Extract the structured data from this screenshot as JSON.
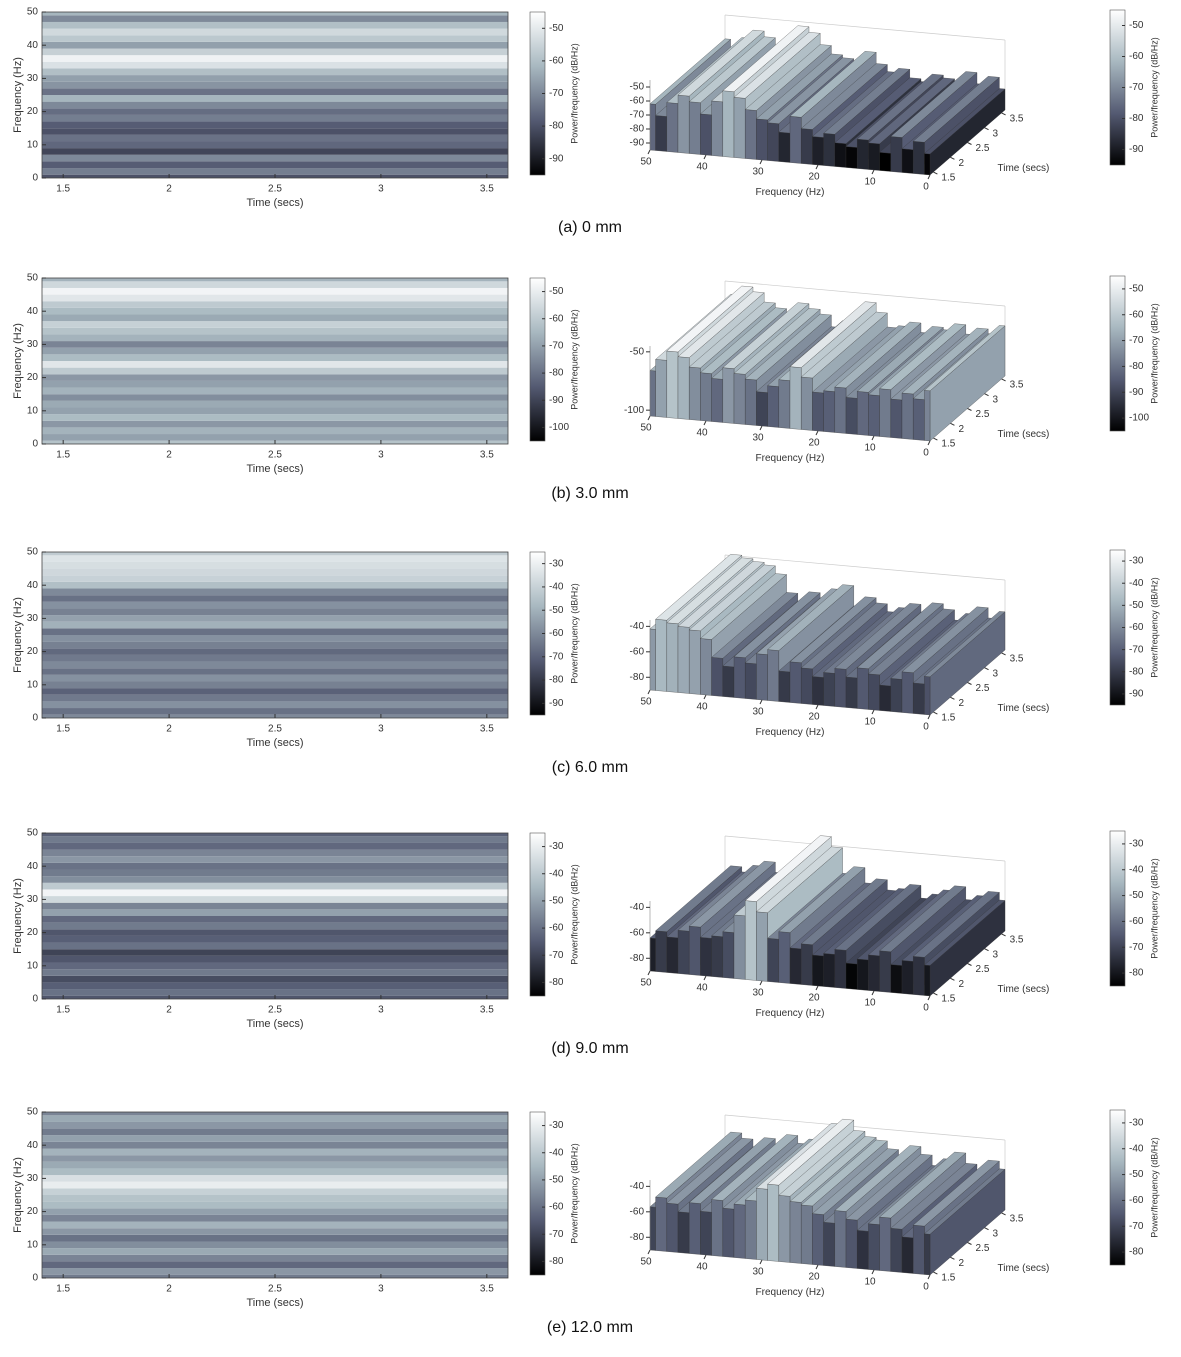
{
  "captions": [
    "(a) 0 mm",
    "(b) 3.0 mm",
    "(c) 6.0 mm",
    "(d) 9.0 mm",
    "(e) 12.0 mm"
  ],
  "chart_data": [
    {
      "type": "heatmap",
      "xlabel": "Time (secs)",
      "ylabel": "Frequency (Hz)",
      "colorbar_label": "Power/frequency (dB/Hz)",
      "xlim": [
        1.4,
        3.6
      ],
      "xticks": [
        1.5,
        2,
        2.5,
        3,
        3.5
      ],
      "ylim": [
        0,
        50
      ],
      "yticks": [
        0,
        10,
        20,
        30,
        40,
        50
      ],
      "clim": [
        -95,
        -45
      ],
      "cticks": [
        -90,
        -80,
        -70,
        -60,
        -50
      ],
      "colormap": [
        "#000000",
        "#545a72",
        "#a8b8c0",
        "#ffffff"
      ],
      "y": [
        0,
        2,
        4,
        6,
        8,
        10,
        12,
        14,
        16,
        18,
        20,
        22,
        24,
        26,
        28,
        30,
        32,
        34,
        36,
        38,
        40,
        42,
        44,
        46,
        48,
        50
      ],
      "values": [
        -80,
        -72,
        -78,
        -70,
        -82,
        -76,
        -74,
        -80,
        -78,
        -72,
        -75,
        -70,
        -62,
        -74,
        -68,
        -66,
        -60,
        -52,
        -48,
        -56,
        -66,
        -58,
        -54,
        -60,
        -70,
        -62
      ]
    },
    {
      "type": "surface",
      "xlabel": "Frequency (Hz)",
      "ylabel": "Time (secs)",
      "colorbar_label": "Power/frequency (dB/Hz)",
      "xlim": [
        0,
        50
      ],
      "xticks": [
        0,
        10,
        20,
        30,
        40,
        50
      ],
      "ylim": [
        1.4,
        3.6
      ],
      "yticks": [
        1.5,
        2,
        2.5,
        3,
        3.5
      ],
      "zlim": [
        -95,
        -45
      ],
      "zticks": [
        -90,
        -80,
        -70,
        -60,
        -50
      ],
      "clim": [
        -95,
        -45
      ],
      "cticks": [
        -90,
        -80,
        -70,
        -60,
        -50
      ],
      "colormap": [
        "#000000",
        "#545a72",
        "#a8b8c0",
        "#ffffff"
      ],
      "x": [
        0,
        2,
        4,
        6,
        8,
        10,
        12,
        14,
        16,
        18,
        20,
        22,
        24,
        26,
        28,
        30,
        32,
        34,
        36,
        38,
        40,
        42,
        44,
        46,
        48,
        50
      ],
      "values": [
        -80,
        -72,
        -78,
        -70,
        -82,
        -76,
        -74,
        -80,
        -78,
        -72,
        -75,
        -70,
        -62,
        -74,
        -68,
        -66,
        -60,
        -52,
        -48,
        -56,
        -66,
        -58,
        -54,
        -60,
        -70,
        -62
      ]
    },
    {
      "type": "heatmap",
      "xlabel": "Time (secs)",
      "ylabel": "Frequency (Hz)",
      "colorbar_label": "Power/frequency (dB/Hz)",
      "xlim": [
        1.4,
        3.6
      ],
      "xticks": [
        1.5,
        2,
        2.5,
        3,
        3.5
      ],
      "ylim": [
        0,
        50
      ],
      "yticks": [
        0,
        10,
        20,
        30,
        40,
        50
      ],
      "clim": [
        -105,
        -45
      ],
      "cticks": [
        -100,
        -90,
        -80,
        -70,
        -60,
        -50
      ],
      "colormap": [
        "#000000",
        "#545a72",
        "#a8b8c0",
        "#ffffff"
      ],
      "y": [
        0,
        2,
        4,
        6,
        8,
        10,
        12,
        14,
        16,
        18,
        20,
        22,
        24,
        26,
        28,
        30,
        32,
        34,
        36,
        38,
        40,
        42,
        44,
        46,
        48,
        50
      ],
      "values": [
        -62,
        -70,
        -66,
        -72,
        -64,
        -70,
        -68,
        -74,
        -66,
        -70,
        -72,
        -60,
        -52,
        -64,
        -70,
        -76,
        -66,
        -62,
        -58,
        -68,
        -64,
        -60,
        -52,
        -48,
        -56,
        -66
      ]
    },
    {
      "type": "surface",
      "xlabel": "Frequency (Hz)",
      "ylabel": "Time (secs)",
      "colorbar_label": "Power/frequency (dB/Hz)",
      "xlim": [
        0,
        50
      ],
      "xticks": [
        0,
        10,
        20,
        30,
        40,
        50
      ],
      "ylim": [
        1.4,
        3.6
      ],
      "yticks": [
        1.5,
        2,
        2.5,
        3,
        3.5
      ],
      "zlim": [
        -105,
        -45
      ],
      "zticks": [
        -100,
        -50
      ],
      "clim": [
        -105,
        -45
      ],
      "cticks": [
        -100,
        -90,
        -80,
        -70,
        -60,
        -50
      ],
      "colormap": [
        "#000000",
        "#545a72",
        "#a8b8c0",
        "#ffffff"
      ],
      "x": [
        0,
        2,
        4,
        6,
        8,
        10,
        12,
        14,
        16,
        18,
        20,
        22,
        24,
        26,
        28,
        30,
        32,
        34,
        36,
        38,
        40,
        42,
        44,
        46,
        48,
        50
      ],
      "values": [
        -62,
        -70,
        -66,
        -72,
        -64,
        -70,
        -68,
        -74,
        -66,
        -70,
        -72,
        -60,
        -52,
        -64,
        -70,
        -76,
        -66,
        -62,
        -58,
        -68,
        -64,
        -60,
        -52,
        -48,
        -56,
        -66
      ]
    },
    {
      "type": "heatmap",
      "xlabel": "Time (secs)",
      "ylabel": "Frequency (Hz)",
      "colorbar_label": "Power/frequency (dB/Hz)",
      "xlim": [
        1.4,
        3.6
      ],
      "xticks": [
        1.5,
        2,
        2.5,
        3,
        3.5
      ],
      "ylim": [
        0,
        50
      ],
      "yticks": [
        0,
        10,
        20,
        30,
        40,
        50
      ],
      "clim": [
        -95,
        -25
      ],
      "cticks": [
        -90,
        -80,
        -70,
        -60,
        -50,
        -40,
        -30
      ],
      "colormap": [
        "#000000",
        "#545a72",
        "#a8b8c0",
        "#ffffff"
      ],
      "y": [
        0,
        2,
        4,
        6,
        8,
        10,
        12,
        14,
        16,
        18,
        20,
        22,
        24,
        26,
        28,
        30,
        32,
        34,
        36,
        38,
        40,
        42,
        44,
        46,
        48,
        50
      ],
      "values": [
        -60,
        -66,
        -58,
        -64,
        -70,
        -62,
        -58,
        -66,
        -60,
        -64,
        -68,
        -62,
        -58,
        -66,
        -50,
        -54,
        -62,
        -58,
        -66,
        -60,
        -46,
        -40,
        -38,
        -36,
        -34,
        -42
      ]
    },
    {
      "type": "surface",
      "xlabel": "Frequency (Hz)",
      "ylabel": "Time (secs)",
      "colorbar_label": "Power/frequency (dB/Hz)",
      "xlim": [
        0,
        50
      ],
      "xticks": [
        0,
        10,
        20,
        30,
        40,
        50
      ],
      "ylim": [
        1.4,
        3.6
      ],
      "yticks": [
        1.5,
        2,
        2.5,
        3,
        3.5
      ],
      "zlim": [
        -90,
        -35
      ],
      "zticks": [
        -80,
        -60,
        -40
      ],
      "clim": [
        -95,
        -25
      ],
      "cticks": [
        -90,
        -80,
        -70,
        -60,
        -50,
        -40,
        -30
      ],
      "colormap": [
        "#000000",
        "#545a72",
        "#a8b8c0",
        "#ffffff"
      ],
      "x": [
        0,
        2,
        4,
        6,
        8,
        10,
        12,
        14,
        16,
        18,
        20,
        22,
        24,
        26,
        28,
        30,
        32,
        34,
        36,
        38,
        40,
        42,
        44,
        46,
        48,
        50
      ],
      "values": [
        -60,
        -66,
        -58,
        -64,
        -70,
        -62,
        -58,
        -66,
        -60,
        -64,
        -68,
        -62,
        -58,
        -66,
        -50,
        -54,
        -62,
        -58,
        -66,
        -60,
        -46,
        -40,
        -38,
        -36,
        -34,
        -42
      ]
    },
    {
      "type": "heatmap",
      "xlabel": "Time (secs)",
      "ylabel": "Frequency (Hz)",
      "colorbar_label": "Power/frequency (dB/Hz)",
      "xlim": [
        1.4,
        3.6
      ],
      "xticks": [
        1.5,
        2,
        2.5,
        3,
        3.5
      ],
      "ylim": [
        0,
        50
      ],
      "yticks": [
        0,
        10,
        20,
        30,
        40,
        50
      ],
      "clim": [
        -85,
        -25
      ],
      "cticks": [
        -80,
        -70,
        -60,
        -50,
        -40,
        -30
      ],
      "colormap": [
        "#000000",
        "#545a72",
        "#a8b8c0",
        "#ffffff"
      ],
      "y": [
        0,
        2,
        4,
        6,
        8,
        10,
        12,
        14,
        16,
        18,
        20,
        22,
        24,
        26,
        28,
        30,
        32,
        34,
        36,
        38,
        40,
        42,
        44,
        46,
        48,
        50
      ],
      "values": [
        -66,
        -60,
        -64,
        -68,
        -58,
        -62,
        -66,
        -70,
        -60,
        -64,
        -66,
        -58,
        -62,
        -50,
        -56,
        -36,
        -28,
        -40,
        -54,
        -58,
        -60,
        -52,
        -56,
        -62,
        -58,
        -64
      ]
    },
    {
      "type": "surface",
      "xlabel": "Frequency (Hz)",
      "ylabel": "Time (secs)",
      "colorbar_label": "Power/frequency (dB/Hz)",
      "xlim": [
        0,
        50
      ],
      "xticks": [
        0,
        10,
        20,
        30,
        40,
        50
      ],
      "ylim": [
        1.4,
        3.6
      ],
      "yticks": [
        1.5,
        2,
        2.5,
        3,
        3.5
      ],
      "zlim": [
        -90,
        -35
      ],
      "zticks": [
        -80,
        -60,
        -40
      ],
      "clim": [
        -85,
        -25
      ],
      "cticks": [
        -80,
        -70,
        -60,
        -50,
        -40,
        -30
      ],
      "colormap": [
        "#000000",
        "#545a72",
        "#a8b8c0",
        "#ffffff"
      ],
      "x": [
        0,
        2,
        4,
        6,
        8,
        10,
        12,
        14,
        16,
        18,
        20,
        22,
        24,
        26,
        28,
        30,
        32,
        34,
        36,
        38,
        40,
        42,
        44,
        46,
        48,
        50
      ],
      "values": [
        -66,
        -60,
        -64,
        -68,
        -58,
        -62,
        -66,
        -70,
        -60,
        -64,
        -66,
        -58,
        -62,
        -50,
        -56,
        -36,
        -28,
        -40,
        -54,
        -58,
        -60,
        -52,
        -56,
        -62,
        -58,
        -64
      ]
    },
    {
      "type": "heatmap",
      "xlabel": "Time (secs)",
      "ylabel": "Frequency (Hz)",
      "colorbar_label": "Power/frequency (dB/Hz)",
      "xlim": [
        1.4,
        3.6
      ],
      "xticks": [
        1.5,
        2,
        2.5,
        3,
        3.5
      ],
      "ylim": [
        0,
        50
      ],
      "yticks": [
        0,
        10,
        20,
        30,
        40,
        50
      ],
      "clim": [
        -85,
        -25
      ],
      "cticks": [
        -80,
        -70,
        -60,
        -50,
        -40,
        -30
      ],
      "colormap": [
        "#000000",
        "#545a72",
        "#a8b8c0",
        "#ffffff"
      ],
      "y": [
        0,
        2,
        4,
        6,
        8,
        10,
        12,
        14,
        16,
        18,
        20,
        22,
        24,
        26,
        28,
        30,
        32,
        34,
        36,
        38,
        40,
        42,
        44,
        46,
        48,
        50
      ],
      "values": [
        -58,
        -52,
        -62,
        -56,
        -48,
        -54,
        -60,
        -52,
        -46,
        -56,
        -50,
        -44,
        -42,
        -38,
        -30,
        -34,
        -44,
        -48,
        -52,
        -46,
        -56,
        -50,
        -58,
        -52,
        -48,
        -56
      ]
    },
    {
      "type": "surface",
      "xlabel": "Frequency (Hz)",
      "ylabel": "Time (secs)",
      "colorbar_label": "Power/frequency (dB/Hz)",
      "xlim": [
        0,
        50
      ],
      "xticks": [
        0,
        10,
        20,
        30,
        40,
        50
      ],
      "ylim": [
        1.4,
        3.6
      ],
      "yticks": [
        1.5,
        2,
        2.5,
        3,
        3.5
      ],
      "zlim": [
        -90,
        -35
      ],
      "zticks": [
        -80,
        -60,
        -40
      ],
      "clim": [
        -85,
        -25
      ],
      "cticks": [
        -80,
        -70,
        -60,
        -50,
        -40,
        -30
      ],
      "colormap": [
        "#000000",
        "#545a72",
        "#a8b8c0",
        "#ffffff"
      ],
      "x": [
        0,
        2,
        4,
        6,
        8,
        10,
        12,
        14,
        16,
        18,
        20,
        22,
        24,
        26,
        28,
        30,
        32,
        34,
        36,
        38,
        40,
        42,
        44,
        46,
        48,
        50
      ],
      "values": [
        -58,
        -52,
        -62,
        -56,
        -48,
        -54,
        -60,
        -52,
        -46,
        -56,
        -50,
        -44,
        -42,
        -38,
        -30,
        -34,
        -44,
        -48,
        -52,
        -46,
        -56,
        -50,
        -58,
        -52,
        -48,
        -56
      ]
    }
  ]
}
